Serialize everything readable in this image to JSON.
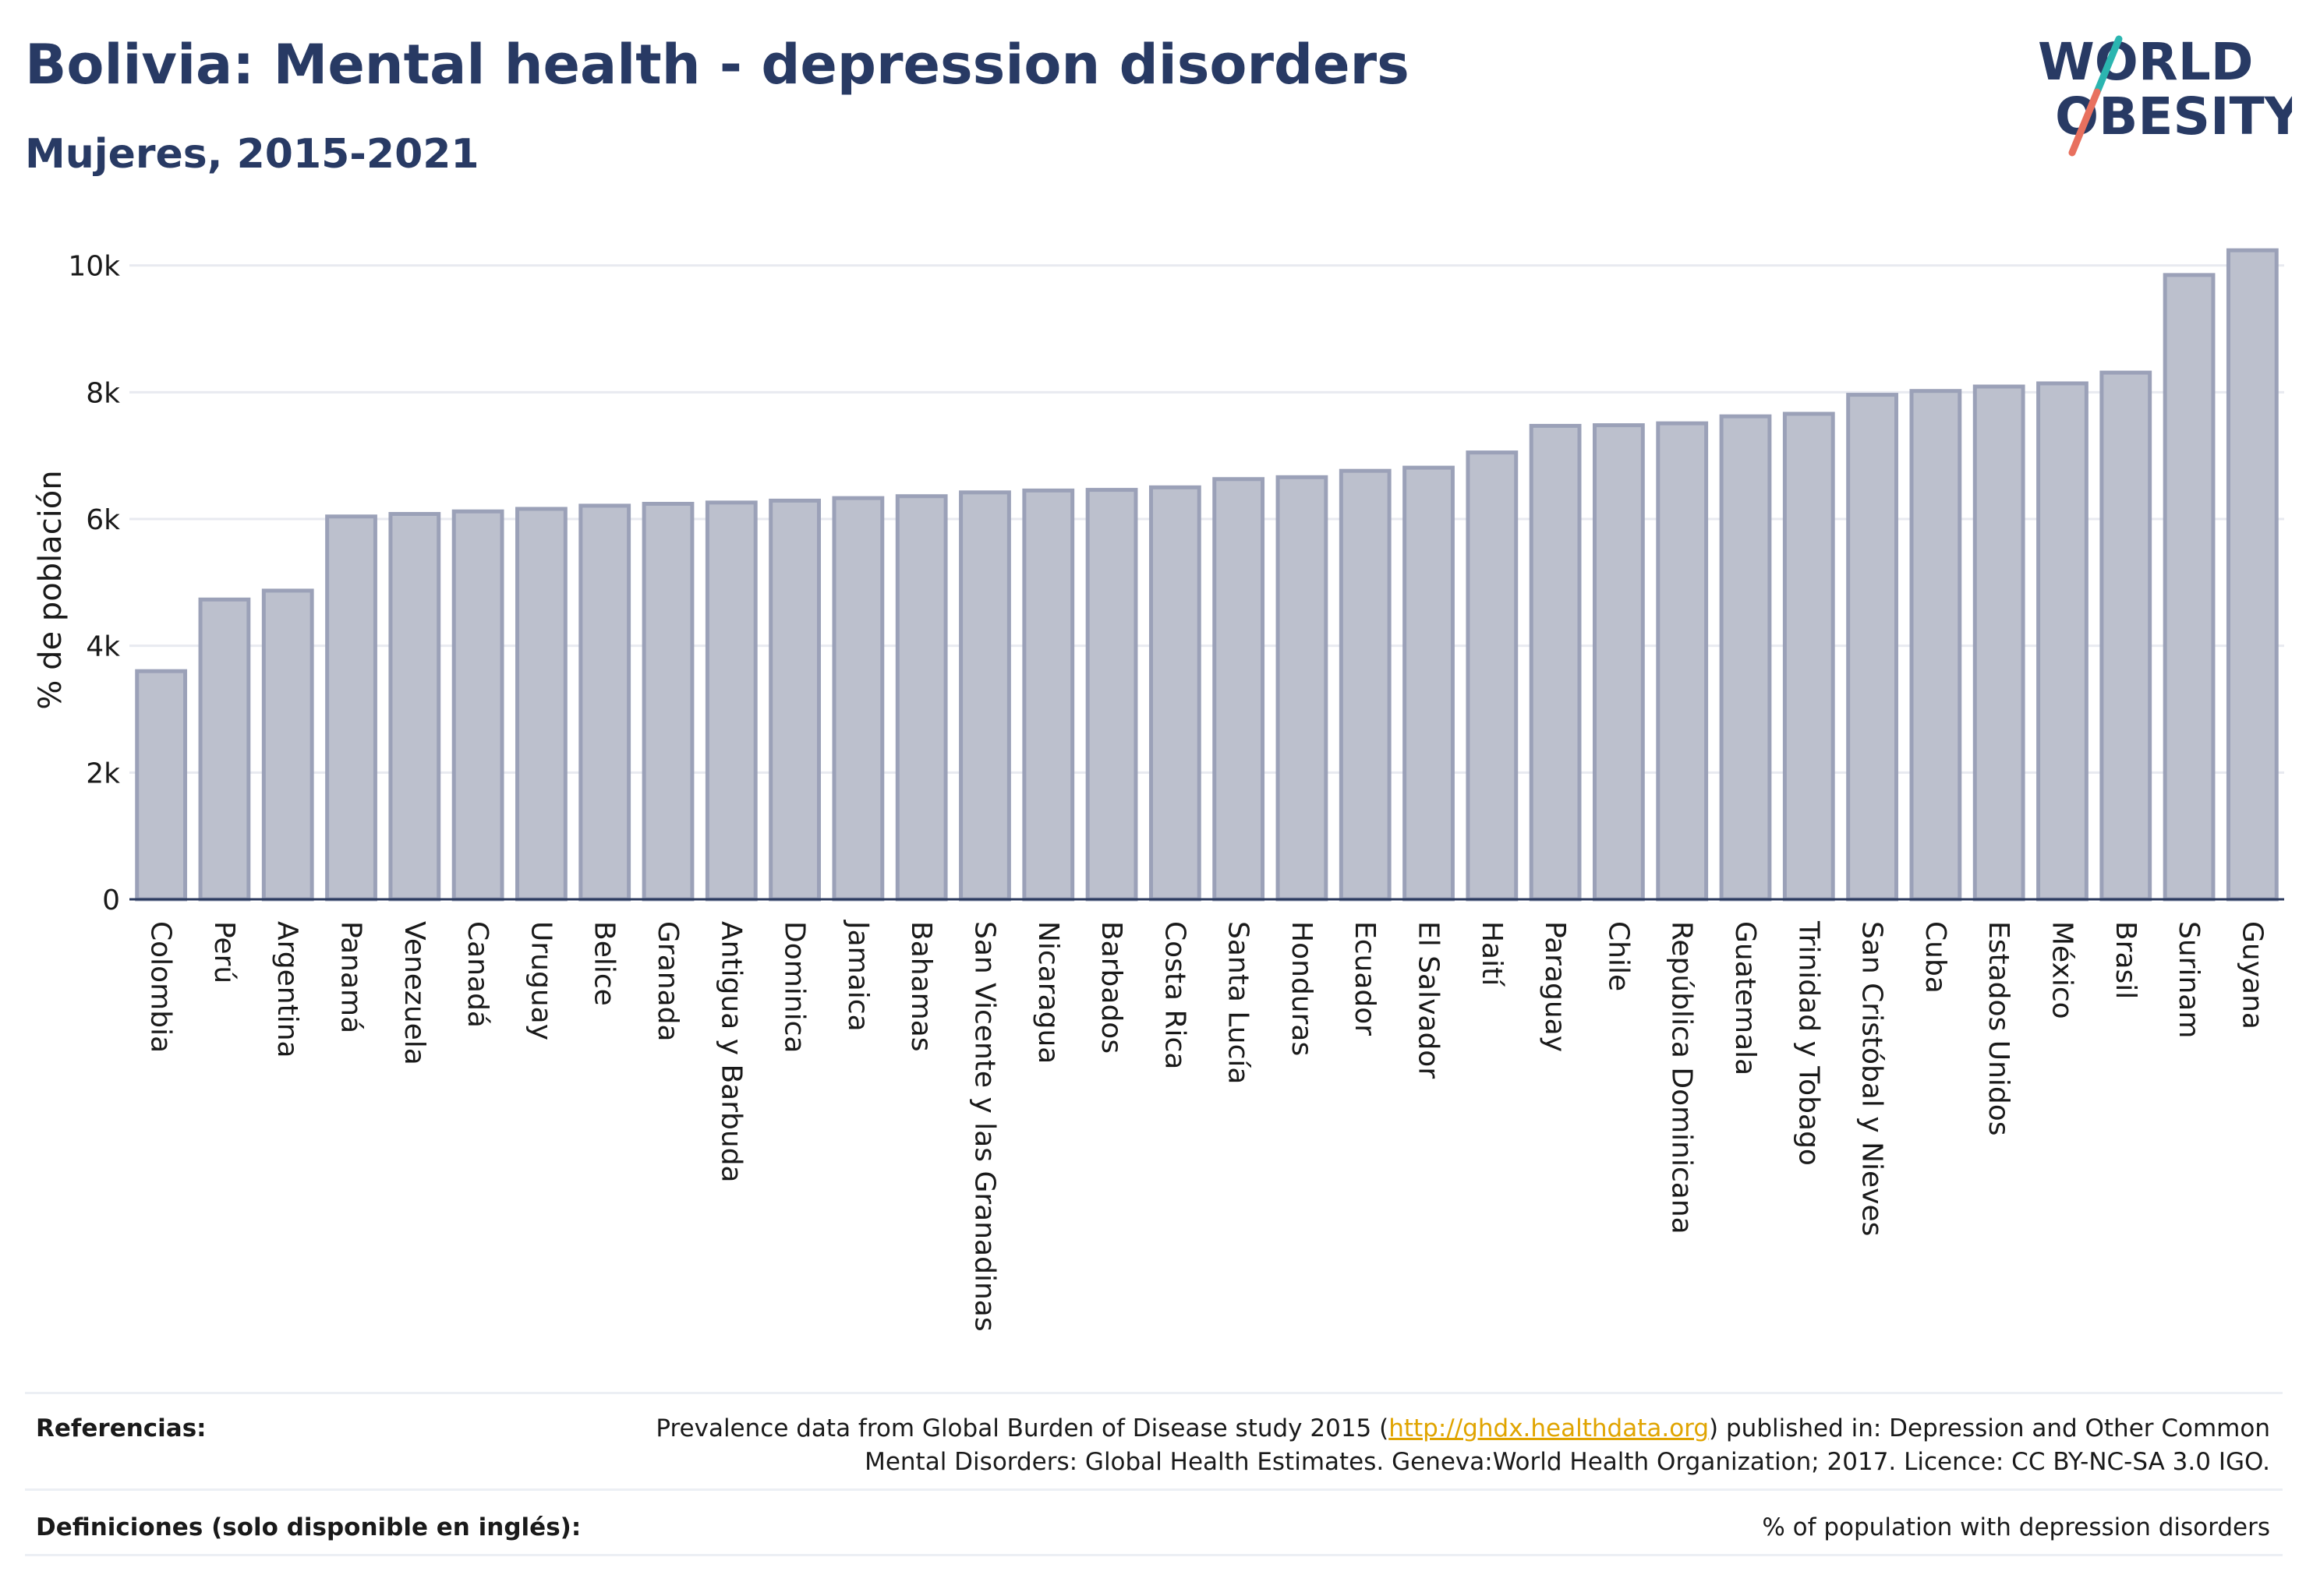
{
  "title": "Bolivia: Mental health - depression disorders",
  "subtitle": "Mujeres, 2015-2021",
  "logo": {
    "line1": "WORLD",
    "line2": "OBESITY"
  },
  "colors": {
    "title": "#283a64",
    "bar_fill": "#bcc0cd",
    "bar_stroke": "#9ba1b8",
    "grid": "#e8eaf0",
    "link": "#e0a400",
    "logo_slash_teal": "#2bb5b0",
    "logo_slash_red": "#e8705e"
  },
  "chart_data": {
    "type": "bar",
    "ylabel": "% de población",
    "ylim": [
      0,
      10500
    ],
    "yticks": [
      0,
      2000,
      4000,
      6000,
      8000,
      10000
    ],
    "ytick_labels": [
      "0",
      "2k",
      "4k",
      "6k",
      "8k",
      "10k"
    ],
    "grid": true,
    "categories": [
      "Colombia",
      "Perú",
      "Argentina",
      "Panamá",
      "Venezuela",
      "Canadá",
      "Uruguay",
      "Belice",
      "Granada",
      "Antigua y Barbuda",
      "Dominica",
      "Jamaica",
      "Bahamas",
      "San Vicente y las Granadinas",
      "Nicaragua",
      "Barbados",
      "Costa Rica",
      "Santa Lucía",
      "Honduras",
      "Ecuador",
      "El Salvador",
      "Haití",
      "Paraguay",
      "Chile",
      "República Dominicana",
      "Guatemala",
      "Trinidad y Tobago",
      "San Cristóbal y Nieves",
      "Cuba",
      "Estados Unidos",
      "México",
      "Brasil",
      "Surinam",
      "Guyana"
    ],
    "values": [
      3600,
      4730,
      4870,
      6040,
      6080,
      6120,
      6160,
      6210,
      6240,
      6260,
      6290,
      6330,
      6360,
      6420,
      6450,
      6460,
      6500,
      6630,
      6660,
      6760,
      6810,
      7050,
      7470,
      7480,
      7510,
      7620,
      7660,
      7960,
      8020,
      8090,
      8140,
      8310,
      9850,
      10240
    ]
  },
  "footer": {
    "references_label": "Referencias:",
    "references_prefix": "Prevalence data from Global Burden of Disease study 2015 (",
    "references_link": "http://ghdx.healthdata.org",
    "references_suffix_line1": ") published in: Depression and Other Common",
    "references_line2": "Mental Disorders: Global Health Estimates. Geneva:World Health Organization; 2017. Licence: CC BY-NC-SA 3.0 IGO.",
    "definitions_label": "Definiciones (solo disponible en inglés):",
    "definitions_text": "% of population with depression disorders"
  }
}
